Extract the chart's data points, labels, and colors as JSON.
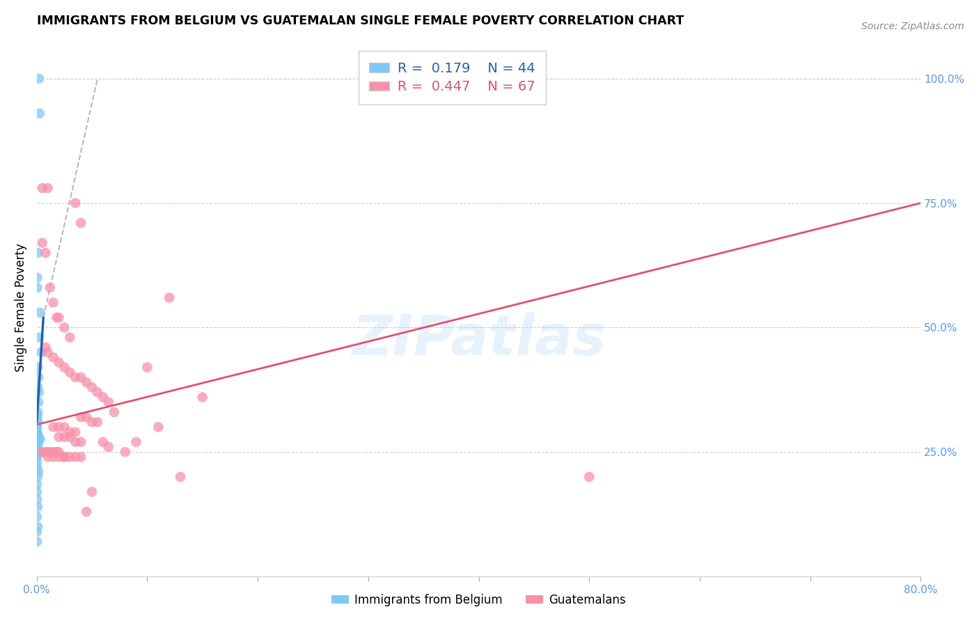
{
  "title": "IMMIGRANTS FROM BELGIUM VS GUATEMALAN SINGLE FEMALE POVERTY CORRELATION CHART",
  "source": "Source: ZipAtlas.com",
  "ylabel": "Single Female Poverty",
  "xlim": [
    0.0,
    0.8
  ],
  "ylim": [
    0.0,
    1.08
  ],
  "legend_R1": "0.179",
  "legend_N1": "44",
  "legend_R2": "0.447",
  "legend_N2": "67",
  "blue_color": "#7ec8f8",
  "pink_color": "#f890a8",
  "blue_line_color": "#2060c0",
  "pink_line_color": "#e05070",
  "dashed_line_color": "#b8b8b8",
  "grid_color": "#cccccc",
  "tick_color": "#5599ff",
  "watermark": "ZIPatlas",
  "blue_scatter_x": [
    0.002,
    0.0025,
    0.001,
    0.0005,
    0.0005,
    0.003,
    0.002,
    0.004,
    0.001,
    0.0015,
    0.001,
    0.002,
    0.0015,
    0.001,
    0.0003,
    0.0003,
    0.0003,
    0.0008,
    0.0002,
    0.0002,
    0.0002,
    0.0002,
    0.0008,
    0.002,
    0.003,
    0.0015,
    0.0008,
    0.0002,
    0.0002,
    0.0008,
    0.0002,
    0.0002,
    0.0002,
    0.0002,
    0.0015,
    0.0008,
    0.0002,
    0.0002,
    0.0002,
    0.0008,
    0.0002,
    0.0008,
    0.0002,
    0.0002
  ],
  "blue_scatter_y": [
    1.0,
    0.93,
    0.65,
    0.6,
    0.58,
    0.53,
    0.48,
    0.45,
    0.42,
    0.4,
    0.38,
    0.37,
    0.35,
    0.33,
    0.325,
    0.32,
    0.315,
    0.31,
    0.3,
    0.3,
    0.29,
    0.29,
    0.285,
    0.28,
    0.275,
    0.27,
    0.265,
    0.26,
    0.255,
    0.25,
    0.245,
    0.24,
    0.23,
    0.22,
    0.21,
    0.2,
    0.185,
    0.17,
    0.155,
    0.14,
    0.12,
    0.1,
    0.09,
    0.07
  ],
  "pink_scatter_x": [
    0.005,
    0.01,
    0.035,
    0.04,
    0.005,
    0.008,
    0.012,
    0.015,
    0.018,
    0.02,
    0.025,
    0.03,
    0.008,
    0.01,
    0.015,
    0.02,
    0.025,
    0.03,
    0.035,
    0.04,
    0.045,
    0.05,
    0.055,
    0.06,
    0.065,
    0.07,
    0.04,
    0.045,
    0.05,
    0.055,
    0.015,
    0.02,
    0.025,
    0.03,
    0.035,
    0.02,
    0.025,
    0.03,
    0.035,
    0.04,
    0.06,
    0.065,
    0.5,
    0.1,
    0.12,
    0.15,
    0.08,
    0.09,
    0.11,
    0.13,
    0.005,
    0.008,
    0.01,
    0.012,
    0.015,
    0.018,
    0.02,
    0.025,
    0.01,
    0.015,
    0.02,
    0.025,
    0.03,
    0.035,
    0.04,
    0.045,
    0.05
  ],
  "pink_scatter_y": [
    0.78,
    0.78,
    0.75,
    0.71,
    0.67,
    0.65,
    0.58,
    0.55,
    0.52,
    0.52,
    0.5,
    0.48,
    0.46,
    0.45,
    0.44,
    0.43,
    0.42,
    0.41,
    0.4,
    0.4,
    0.39,
    0.38,
    0.37,
    0.36,
    0.35,
    0.33,
    0.32,
    0.32,
    0.31,
    0.31,
    0.3,
    0.3,
    0.3,
    0.29,
    0.29,
    0.28,
    0.28,
    0.28,
    0.27,
    0.27,
    0.27,
    0.26,
    0.2,
    0.42,
    0.56,
    0.36,
    0.25,
    0.27,
    0.3,
    0.2,
    0.25,
    0.25,
    0.25,
    0.25,
    0.25,
    0.25,
    0.25,
    0.24,
    0.24,
    0.24,
    0.24,
    0.24,
    0.24,
    0.24,
    0.24,
    0.13,
    0.17
  ],
  "blue_line_x": [
    0.0,
    0.006
  ],
  "blue_line_y": [
    0.31,
    0.52
  ],
  "pink_line_x": [
    0.0,
    0.8
  ],
  "pink_line_y": [
    0.305,
    0.75
  ],
  "dashed_line_x": [
    0.006,
    0.055
  ],
  "dashed_line_y": [
    0.52,
    1.0
  ],
  "x_ticks": [
    0.0,
    0.1,
    0.2,
    0.3,
    0.4,
    0.5,
    0.6,
    0.7,
    0.8
  ],
  "y_ticks": [
    0.0,
    0.25,
    0.5,
    0.75,
    1.0
  ],
  "y_tick_labels": [
    "",
    "25.0%",
    "50.0%",
    "75.0%",
    "100.0%"
  ]
}
